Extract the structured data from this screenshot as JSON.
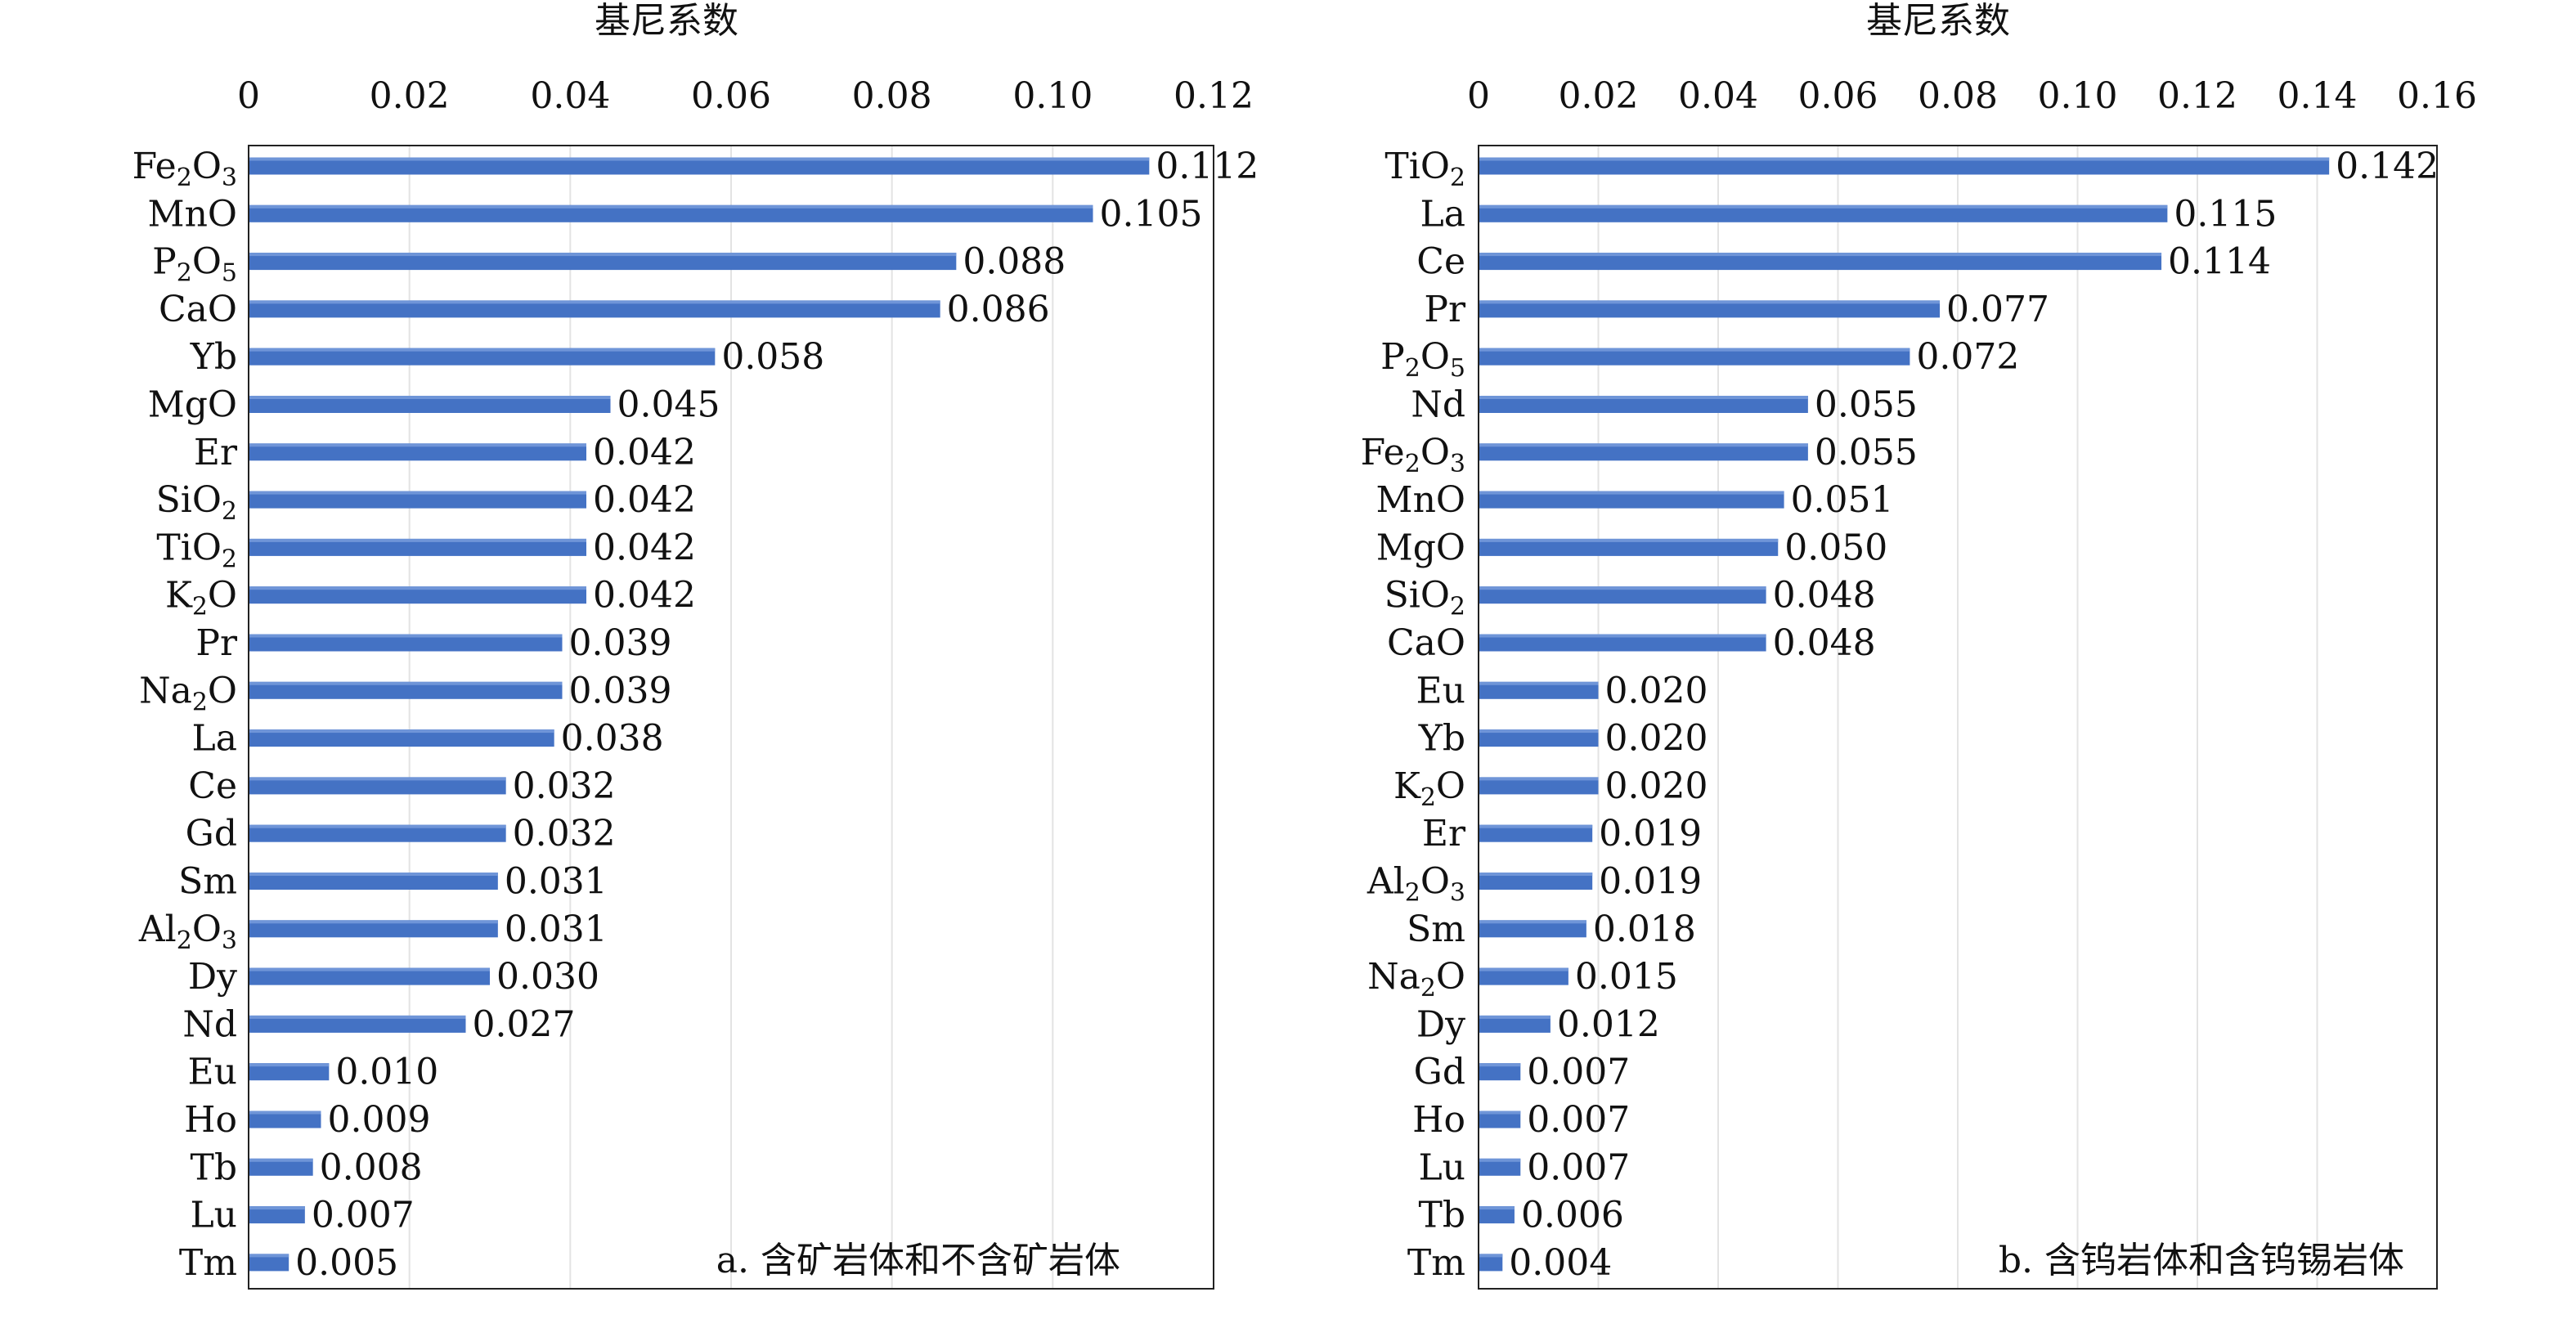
{
  "chart_data": [
    {
      "type": "bar",
      "orientation": "horizontal",
      "xlabel": "基尼系数",
      "ylabel": "",
      "xlim": [
        0,
        0.12
      ],
      "xticks": [
        "0",
        "0.02",
        "0.04",
        "0.06",
        "0.08",
        "0.10",
        "0.12"
      ],
      "xtick_values": [
        0,
        0.02,
        0.04,
        0.06,
        0.08,
        0.1,
        0.12
      ],
      "grid": true,
      "color": "#4472C4",
      "annotation": "a. 含矿岩体和不含矿岩体",
      "categories": [
        {
          "base": "Fe",
          "sub": "2",
          "tail": "O",
          "sub2": "3"
        },
        {
          "base": "MnO"
        },
        {
          "base": "P",
          "sub": "2",
          "tail": "O",
          "sub2": "5"
        },
        {
          "base": "CaO"
        },
        {
          "base": "Yb"
        },
        {
          "base": "MgO"
        },
        {
          "base": "Er"
        },
        {
          "base": "SiO",
          "sub": "2"
        },
        {
          "base": "TiO",
          "sub": "2"
        },
        {
          "base": "K",
          "sub": "2",
          "tail": "O"
        },
        {
          "base": "Pr"
        },
        {
          "base": "Na",
          "sub": "2",
          "tail": "O"
        },
        {
          "base": "La"
        },
        {
          "base": "Ce"
        },
        {
          "base": "Gd"
        },
        {
          "base": "Sm"
        },
        {
          "base": "Al",
          "sub": "2",
          "tail": "O",
          "sub2": "3"
        },
        {
          "base": "Dy"
        },
        {
          "base": "Nd"
        },
        {
          "base": "Eu"
        },
        {
          "base": "Ho"
        },
        {
          "base": "Tb"
        },
        {
          "base": "Lu"
        },
        {
          "base": "Tm"
        }
      ],
      "values": [
        0.112,
        0.105,
        0.088,
        0.086,
        0.058,
        0.045,
        0.042,
        0.042,
        0.042,
        0.042,
        0.039,
        0.039,
        0.038,
        0.032,
        0.032,
        0.031,
        0.031,
        0.03,
        0.027,
        0.01,
        0.009,
        0.008,
        0.007,
        0.005
      ],
      "labels": [
        "0.112",
        "0.105",
        "0.088",
        "0.086",
        "0.058",
        "0.045",
        "0.042",
        "0.042",
        "0.042",
        "0.042",
        "0.039",
        "0.039",
        "0.038",
        "0.032",
        "0.032",
        "0.031",
        "0.031",
        "0.030",
        "0.027",
        "0.010",
        "0.009",
        "0.008",
        "0.007",
        "0.005"
      ]
    },
    {
      "type": "bar",
      "orientation": "horizontal",
      "xlabel": "基尼系数",
      "ylabel": "",
      "xlim": [
        0,
        0.16
      ],
      "xticks": [
        "0",
        "0.02",
        "0.04",
        "0.06",
        "0.08",
        "0.10",
        "0.12",
        "0.14",
        "0.16"
      ],
      "xtick_values": [
        0,
        0.02,
        0.04,
        0.06,
        0.08,
        0.1,
        0.12,
        0.14,
        0.16
      ],
      "grid": true,
      "color": "#4472C4",
      "annotation": "b. 含钨岩体和含钨锡岩体",
      "categories": [
        {
          "base": "TiO",
          "sub": "2"
        },
        {
          "base": "La"
        },
        {
          "base": "Ce"
        },
        {
          "base": "Pr"
        },
        {
          "base": "P",
          "sub": "2",
          "tail": "O",
          "sub2": "5"
        },
        {
          "base": "Nd"
        },
        {
          "base": "Fe",
          "sub": "2",
          "tail": "O",
          "sub2": "3"
        },
        {
          "base": "MnO"
        },
        {
          "base": "MgO"
        },
        {
          "base": "SiO",
          "sub": "2"
        },
        {
          "base": "CaO"
        },
        {
          "base": "Eu"
        },
        {
          "base": "Yb"
        },
        {
          "base": "K",
          "sub": "2",
          "tail": "O"
        },
        {
          "base": "Er"
        },
        {
          "base": "Al",
          "sub": "2",
          "tail": "O",
          "sub2": "3"
        },
        {
          "base": "Sm"
        },
        {
          "base": "Na",
          "sub": "2",
          "tail": "O"
        },
        {
          "base": "Dy"
        },
        {
          "base": "Gd"
        },
        {
          "base": "Ho"
        },
        {
          "base": "Lu"
        },
        {
          "base": "Tb"
        },
        {
          "base": "Tm"
        }
      ],
      "values": [
        0.142,
        0.115,
        0.114,
        0.077,
        0.072,
        0.055,
        0.055,
        0.051,
        0.05,
        0.048,
        0.048,
        0.02,
        0.02,
        0.02,
        0.019,
        0.019,
        0.018,
        0.015,
        0.012,
        0.007,
        0.007,
        0.007,
        0.006,
        0.004
      ],
      "labels": [
        "0.142",
        "0.115",
        "0.114",
        "0.077",
        "0.072",
        "0.055",
        "0.055",
        "0.051",
        "0.050",
        "0.048",
        "0.048",
        "0.020",
        "0.020",
        "0.020",
        "0.019",
        "0.019",
        "0.018",
        "0.015",
        "0.012",
        "0.007",
        "0.007",
        "0.007",
        "0.006",
        "0.004"
      ]
    }
  ]
}
